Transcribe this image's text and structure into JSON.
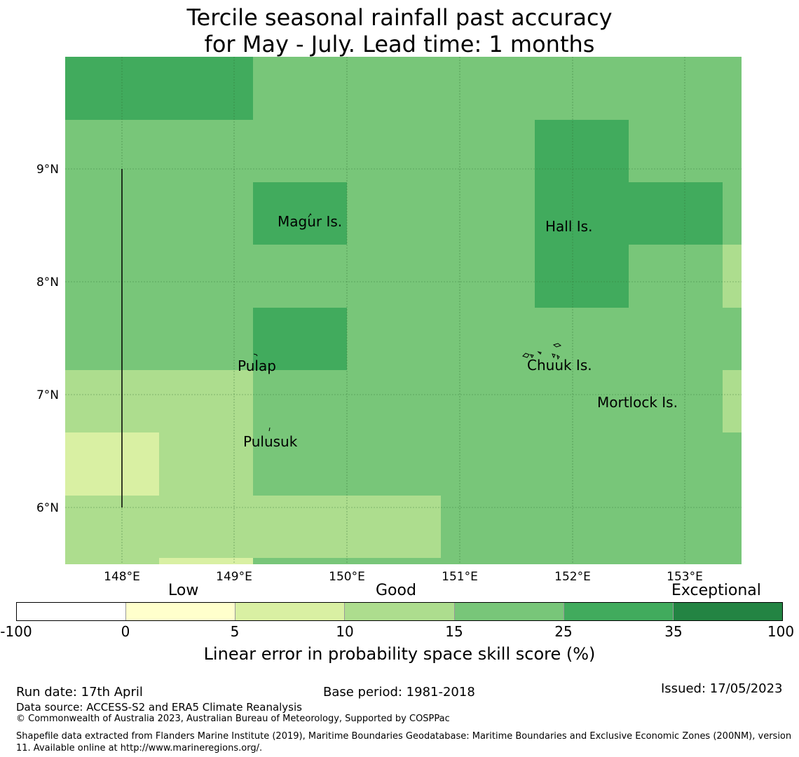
{
  "title": {
    "line1": "Tercile seasonal rainfall past accuracy",
    "line2": "for May - July. Lead time: 1 months"
  },
  "map": {
    "lon_labels": [
      "148°E",
      "149°E",
      "150°E",
      "151°E",
      "152°E",
      "153°E"
    ],
    "lat_labels": [
      "9°N",
      "8°N",
      "7°N",
      "6°N"
    ],
    "lon_range": [
      147.5,
      153.5
    ],
    "lat_range": [
      5.5,
      10.0
    ],
    "grid": true,
    "places": [
      {
        "name": "Magur Is."
      },
      {
        "name": "Hall Is."
      },
      {
        "name": "Pulap"
      },
      {
        "name": "Chuuk Is."
      },
      {
        "name": "Mortlock Is."
      },
      {
        "name": "Pulusuk"
      }
    ],
    "colors": {
      "score_0_5": "#ffffcc",
      "score_5_10": "#d9f0a3",
      "score_10_15": "#addd8e",
      "score_15_25": "#78c679",
      "score_25_35": "#41ab5d",
      "score_35_100": "#238443"
    }
  },
  "colorbar": {
    "categories": [
      "Low",
      "Good",
      "Exceptional"
    ],
    "ticks": [
      "-100",
      "0",
      "5",
      "10",
      "15",
      "25",
      "35",
      "100"
    ],
    "colors": [
      "#ffffff",
      "#ffffcc",
      "#d9f0a3",
      "#addd8e",
      "#78c679",
      "#41ab5d",
      "#238443"
    ],
    "label": "Linear error in probability space skill score (%)"
  },
  "footer": {
    "run_date": "Run date: 17th April",
    "base_period": "Base period: 1981-2018",
    "issued": "Issued: 17/05/2023",
    "data_source": "Data source: ACCESS-S2 and ERA5 Climate Reanalysis",
    "copyright": "© Commonwealth of Australia 2023, Australian Bureau of Meteorology, Supported by COSPPac",
    "shapefile": "Shapefile data extracted from Flanders Marine Institute (2019), Maritime Boundaries Geodatabase: Maritime Boundaries and Exclusive Economic Zones (200NM), version 11. Available online at http://www.marineregions.org/."
  }
}
